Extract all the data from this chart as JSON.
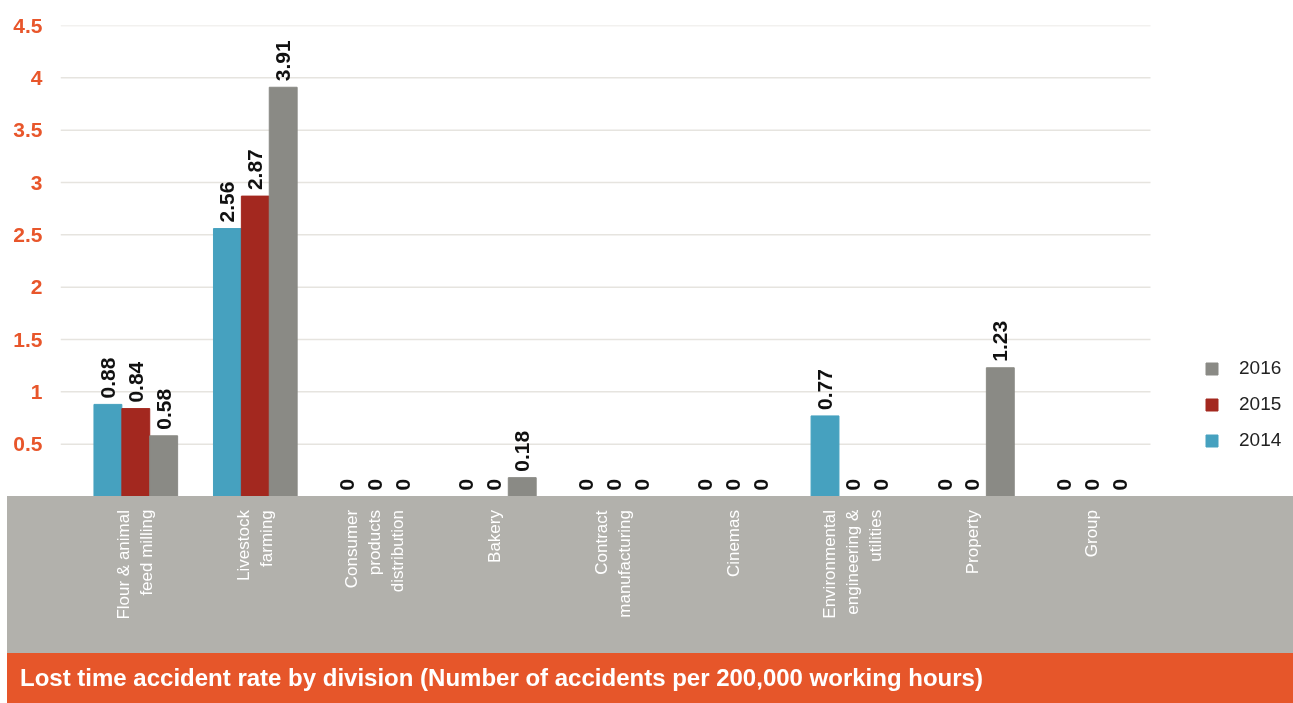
{
  "chart_data": {
    "type": "bar",
    "title": "Lost time accident rate by division (Number of accidents per 200,000 working hours)",
    "categories": [
      "Flour & animal feed milling",
      "Livestock farming",
      "Consumer products distribution",
      "Bakery",
      "Contract manufacturing",
      "Cinemas",
      "Environmental engineering & utilities",
      "Property",
      "Group"
    ],
    "series": [
      {
        "name": "2014",
        "color": "#46a1bf",
        "values": [
          0.88,
          2.56,
          0,
          0,
          0,
          0,
          0.77,
          0,
          0
        ]
      },
      {
        "name": "2015",
        "color": "#a3281f",
        "values": [
          0.84,
          2.87,
          0,
          0,
          0,
          0,
          0,
          0,
          0
        ]
      },
      {
        "name": "2016",
        "color": "#8a8a85",
        "values": [
          0.58,
          3.91,
          0,
          0.18,
          0,
          0,
          0,
          1.23,
          0
        ]
      }
    ],
    "ylim": [
      0,
      4.5
    ],
    "yticks": [
      0.5,
      1,
      1.5,
      2,
      2.5,
      3,
      3.5,
      4,
      4.5
    ],
    "grid": "y",
    "legend": "right",
    "data_labels": true
  }
}
